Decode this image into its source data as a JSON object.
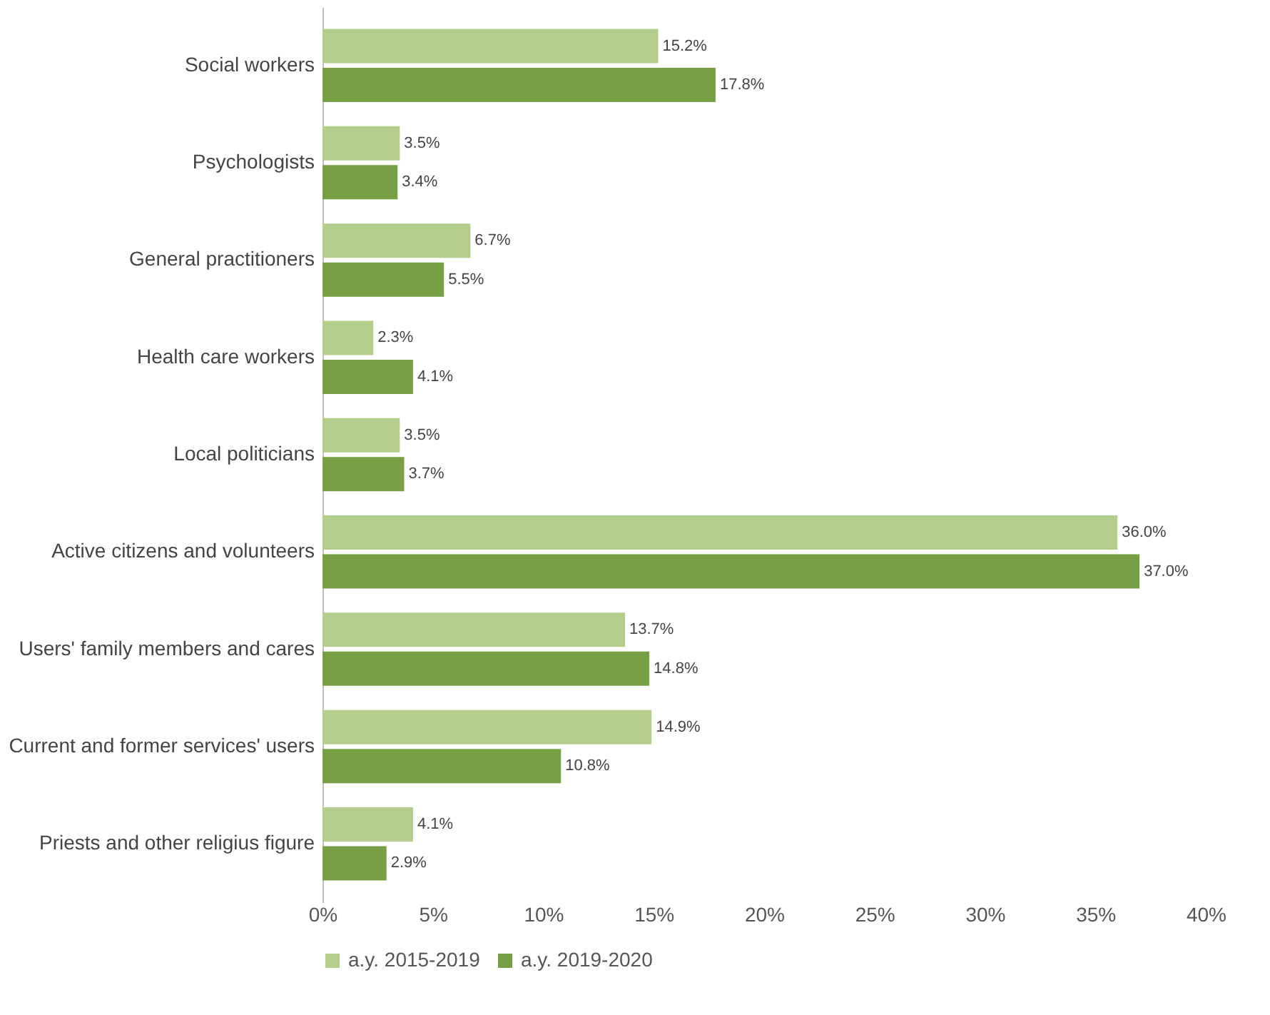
{
  "chart_data": {
    "type": "bar",
    "orientation": "horizontal",
    "categories": [
      "Social workers",
      "Psychologists",
      "General practitioners",
      "Health care workers",
      "Local politicians",
      "Active citizens and volunteers",
      "Users' family members and cares",
      "Current and former services' users",
      "Priests and other religius figure"
    ],
    "series": [
      {
        "name": "a.y. 2015-2019",
        "color": "#b3cd8c",
        "values": [
          15.2,
          3.5,
          6.7,
          2.3,
          3.5,
          36.0,
          13.7,
          14.9,
          4.1
        ],
        "value_labels": [
          "15.2%",
          "3.5%",
          "6.7%",
          "2.3%",
          "3.5%",
          "36.0%",
          "13.7%",
          "14.9%",
          "4.1%"
        ]
      },
      {
        "name": "a.y. 2019-2020",
        "color": "#77a044",
        "values": [
          17.8,
          3.4,
          5.5,
          4.1,
          3.7,
          37.0,
          14.8,
          10.8,
          2.9
        ],
        "value_labels": [
          "17.8%",
          "3.4%",
          "5.5%",
          "4.1%",
          "3.7%",
          "37.0%",
          "14.8%",
          "10.8%",
          "2.9%"
        ]
      }
    ],
    "xlim": [
      0,
      40
    ],
    "xticks": [
      {
        "value": 0,
        "label": "0%"
      },
      {
        "value": 5,
        "label": "5%"
      },
      {
        "value": 10,
        "label": "10%"
      },
      {
        "value": 15,
        "label": "15%"
      },
      {
        "value": 20,
        "label": "20%"
      },
      {
        "value": 25,
        "label": "25%"
      },
      {
        "value": 30,
        "label": "30%"
      },
      {
        "value": 35,
        "label": "35%"
      },
      {
        "value": 40,
        "label": "40%"
      }
    ],
    "grid": false,
    "legend": "bottom"
  }
}
